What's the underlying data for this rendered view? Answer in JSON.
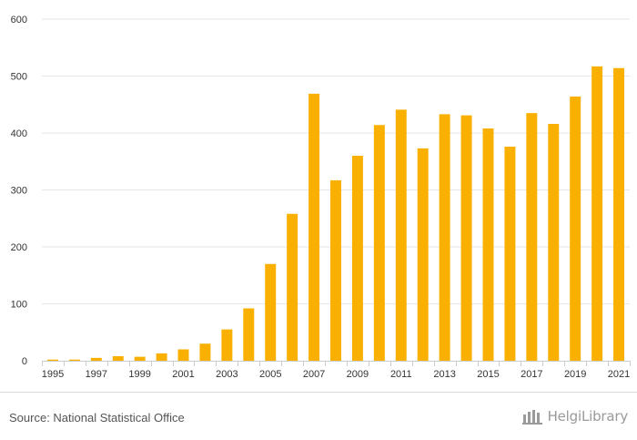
{
  "chart_data": {
    "type": "bar",
    "title": "",
    "xlabel": "",
    "ylabel": "",
    "ylim": [
      0,
      600
    ],
    "yticks": [
      0,
      100,
      200,
      300,
      400,
      500,
      600
    ],
    "categories": [
      "1995",
      "1996",
      "1997",
      "1998",
      "1999",
      "2000",
      "2001",
      "2002",
      "2003",
      "2004",
      "2005",
      "2006",
      "2007",
      "2008",
      "2009",
      "2010",
      "2011",
      "2012",
      "2013",
      "2014",
      "2015",
      "2016",
      "2017",
      "2018",
      "2019",
      "2020",
      "2021"
    ],
    "tick_labels": [
      "1995",
      "",
      "1997",
      "",
      "1999",
      "",
      "2001",
      "",
      "2003",
      "",
      "2005",
      "",
      "2007",
      "",
      "2009",
      "",
      "2011",
      "",
      "2013",
      "",
      "2015",
      "",
      "2017",
      "",
      "2019",
      "",
      "2021"
    ],
    "values": [
      2,
      2,
      5,
      8,
      7,
      13,
      20,
      30,
      55,
      92,
      170,
      258,
      469,
      317,
      360,
      414,
      441,
      373,
      433,
      431,
      408,
      376,
      435,
      416,
      464,
      517,
      514
    ],
    "grid": true,
    "bar_color": "#F9B000",
    "grid_color": "#e6e6e6"
  },
  "footer": {
    "source": "Source: National Statistical Office",
    "brand": "HelgiLibrary"
  }
}
